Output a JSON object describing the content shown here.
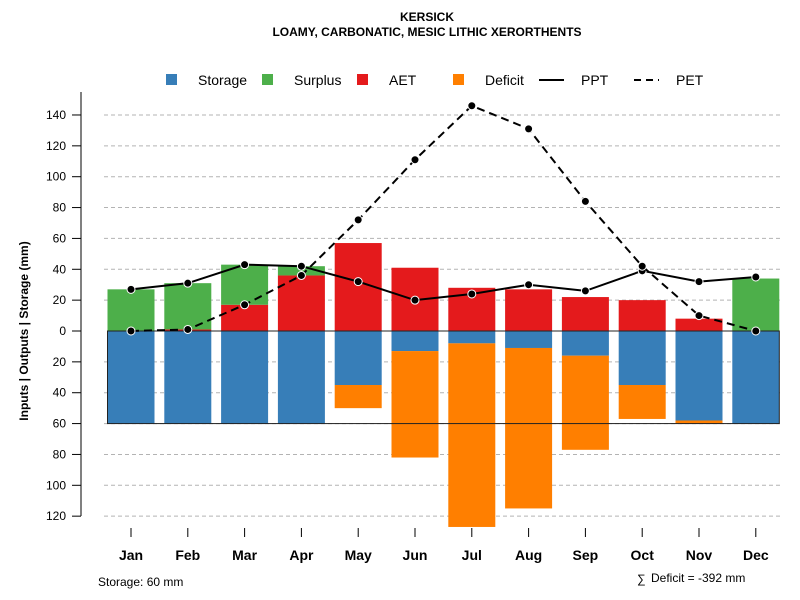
{
  "chart_data": {
    "type": "bar",
    "title": "KERSICK",
    "subtitle": "LOAMY, CARBONATIC, MESIC LITHIC XERORTHENTS",
    "xlabel": "",
    "ylabel": "Inputs | Outputs | Storage    (mm)",
    "categories": [
      "Jan",
      "Feb",
      "Mar",
      "Apr",
      "May",
      "Jun",
      "Jul",
      "Aug",
      "Sep",
      "Oct",
      "Nov",
      "Dec"
    ],
    "yticks_above": [
      0,
      20,
      40,
      60,
      80,
      100,
      120,
      140
    ],
    "yticks_below": [
      20,
      40,
      60,
      80,
      100,
      120
    ],
    "ylim": [
      -125,
      150
    ],
    "grid": true,
    "legend_position": "top",
    "legend": [
      {
        "name": "Storage",
        "kind": "box",
        "color": "#377EB8"
      },
      {
        "name": "Surplus",
        "kind": "box",
        "color": "#4DAF4A"
      },
      {
        "name": "AET",
        "kind": "box",
        "color": "#E41A1C"
      },
      {
        "name": "Deficit",
        "kind": "box",
        "color": "#FF7F00"
      },
      {
        "name": "PPT",
        "kind": "solid-line",
        "color": "#000000"
      },
      {
        "name": "PET",
        "kind": "dashed-line",
        "color": "#000000"
      }
    ],
    "series": [
      {
        "name": "Storage",
        "values": [
          60,
          60,
          60,
          60,
          35,
          13,
          8,
          11,
          16,
          35,
          58,
          60
        ]
      },
      {
        "name": "Surplus",
        "values": [
          27,
          30,
          26,
          6,
          0,
          0,
          0,
          0,
          0,
          0,
          0,
          34
        ]
      },
      {
        "name": "AET",
        "values": [
          0,
          1,
          17,
          36,
          57,
          41,
          28,
          27,
          22,
          20,
          8,
          0
        ]
      },
      {
        "name": "Deficit",
        "values": [
          0,
          0,
          0,
          0,
          15,
          69,
          119,
          104,
          61,
          22,
          2,
          0
        ]
      },
      {
        "name": "PPT",
        "values": [
          27,
          31,
          43,
          42,
          32,
          20,
          24,
          30,
          26,
          39,
          32,
          35
        ]
      },
      {
        "name": "PET",
        "values": [
          0,
          1,
          17,
          36,
          72,
          111,
          146,
          131,
          84,
          42,
          10,
          0
        ]
      }
    ],
    "storage_capacity": 60,
    "annotations": {
      "storage_note": "Storage: 60 mm",
      "deficit_note": "Deficit = -392 mm",
      "deficit_symbol": "∑"
    }
  }
}
